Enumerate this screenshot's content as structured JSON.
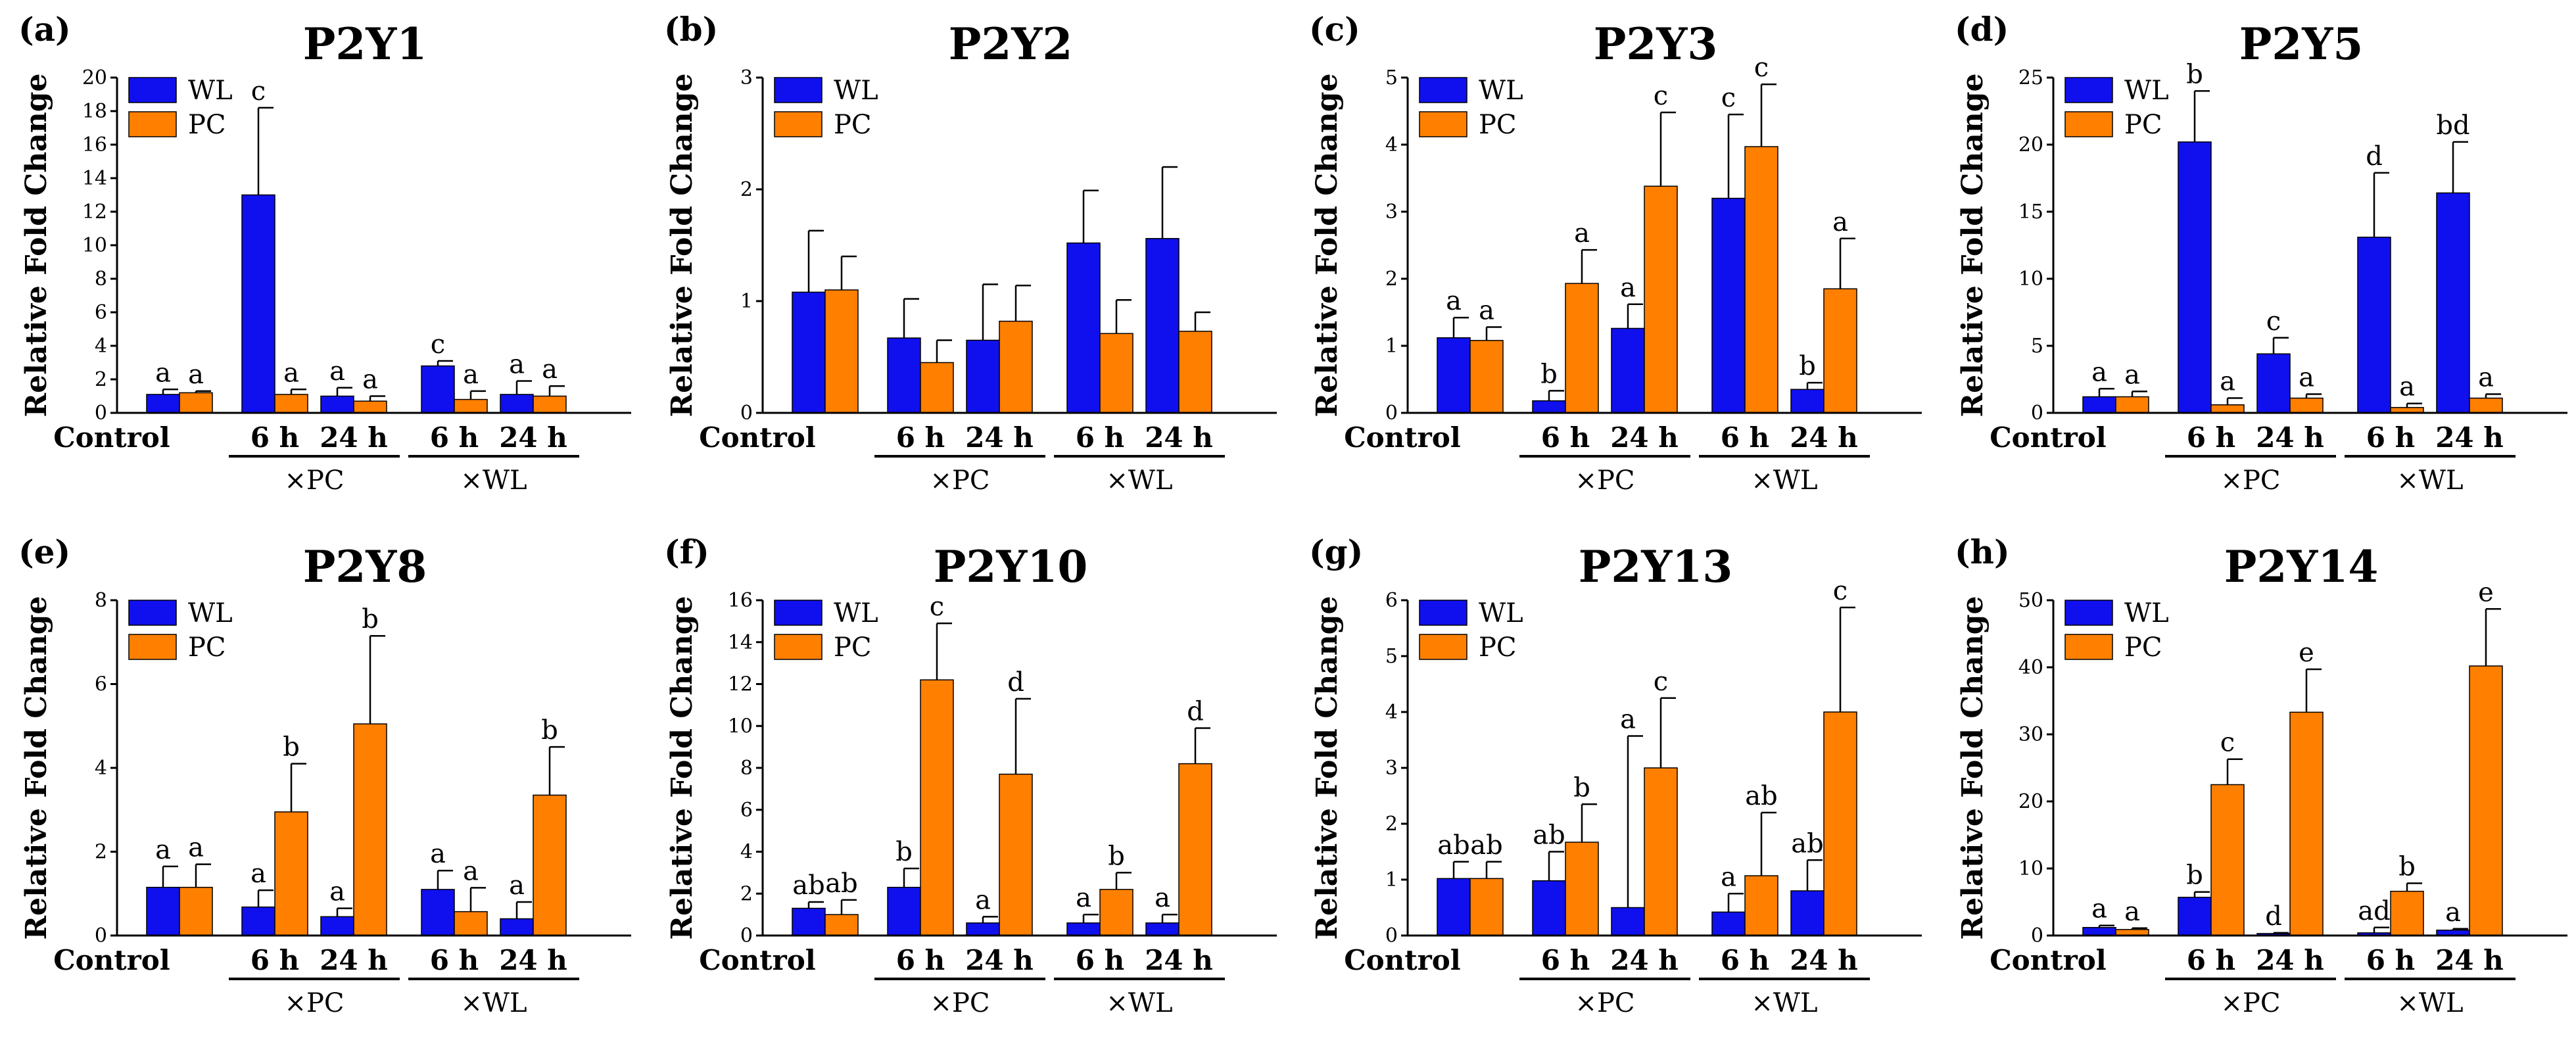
{
  "colors": {
    "WL": "#1010ee",
    "PC": "#ff7f00",
    "axis": "#000000"
  },
  "legend": {
    "wl_label": "WL",
    "pc_label": "PC"
  },
  "x_labels": {
    "control": "Control",
    "t6": "6 h",
    "t24": "24 h",
    "group_pc": "×PC",
    "group_wl": "×WL"
  },
  "ylabel": "Relative Fold Change",
  "chart_data": [
    {
      "type": "bar",
      "panel": "(a)",
      "title": "P2Y1",
      "ylabel": "Relative Fold Change",
      "ylim": [
        0,
        20
      ],
      "yticks": [
        0,
        2,
        4,
        6,
        8,
        10,
        12,
        14,
        16,
        18,
        20
      ],
      "categories": [
        "Control",
        "6 h ×PC",
        "24 h ×PC",
        "6 h ×WL",
        "24 h ×WL"
      ],
      "series": [
        {
          "name": "WL",
          "values": [
            1.1,
            13.0,
            1.0,
            2.8,
            1.1
          ],
          "errors": [
            0.3,
            5.2,
            0.5,
            0.3,
            0.8
          ],
          "labels": [
            "a",
            "c",
            "a",
            "c",
            "a"
          ]
        },
        {
          "name": "PC",
          "values": [
            1.2,
            1.1,
            0.7,
            0.8,
            1.0
          ],
          "errors": [
            0.1,
            0.3,
            0.3,
            0.5,
            0.6
          ],
          "labels": [
            "a",
            "a",
            "a",
            "a",
            "a"
          ]
        }
      ]
    },
    {
      "type": "bar",
      "panel": "(b)",
      "title": "P2Y2",
      "ylabel": "Relative Fold Change",
      "ylim": [
        0,
        3
      ],
      "yticks": [
        0,
        1,
        2,
        3
      ],
      "categories": [
        "Control",
        "6 h ×PC",
        "24 h ×PC",
        "6 h ×WL",
        "24 h ×WL"
      ],
      "series": [
        {
          "name": "WL",
          "values": [
            1.08,
            0.67,
            0.65,
            1.52,
            1.56
          ],
          "errors": [
            0.55,
            0.35,
            0.5,
            0.47,
            0.64
          ],
          "labels": [
            "",
            "",
            "",
            "",
            ""
          ]
        },
        {
          "name": "PC",
          "values": [
            1.1,
            0.45,
            0.82,
            0.71,
            0.73
          ],
          "errors": [
            0.3,
            0.2,
            0.32,
            0.3,
            0.17
          ],
          "labels": [
            "",
            "",
            "",
            "",
            ""
          ]
        }
      ]
    },
    {
      "type": "bar",
      "panel": "(c)",
      "title": "P2Y3",
      "ylabel": "Relative Fold Change",
      "ylim": [
        0,
        5
      ],
      "yticks": [
        0,
        1,
        2,
        3,
        4,
        5
      ],
      "categories": [
        "Control",
        "6 h ×PC",
        "24 h ×PC",
        "6 h ×WL",
        "24 h ×WL"
      ],
      "series": [
        {
          "name": "WL",
          "values": [
            1.12,
            0.18,
            1.26,
            3.2,
            0.35
          ],
          "errors": [
            0.3,
            0.15,
            0.36,
            1.25,
            0.1
          ],
          "labels": [
            "a",
            "b",
            "a",
            "c",
            "b"
          ]
        },
        {
          "name": "PC",
          "values": [
            1.08,
            1.93,
            3.38,
            3.97,
            1.85
          ],
          "errors": [
            0.2,
            0.5,
            1.1,
            0.93,
            0.75
          ],
          "labels": [
            "a",
            "a",
            "c",
            "c",
            "a"
          ]
        }
      ]
    },
    {
      "type": "bar",
      "panel": "(d)",
      "title": "P2Y5",
      "ylabel": "Relative Fold Change",
      "ylim": [
        0,
        25
      ],
      "yticks": [
        0,
        5,
        10,
        15,
        20,
        25
      ],
      "categories": [
        "Control",
        "6 h ×PC",
        "24 h ×PC",
        "6 h ×WL",
        "24 h ×WL"
      ],
      "series": [
        {
          "name": "WL",
          "values": [
            1.2,
            20.2,
            4.4,
            13.1,
            16.4
          ],
          "errors": [
            0.6,
            3.8,
            1.2,
            4.8,
            3.8
          ],
          "labels": [
            "a",
            "b",
            "c",
            "d",
            "bd"
          ]
        },
        {
          "name": "PC",
          "values": [
            1.2,
            0.6,
            1.1,
            0.4,
            1.1
          ],
          "errors": [
            0.4,
            0.5,
            0.3,
            0.3,
            0.3
          ],
          "labels": [
            "a",
            "a",
            "a",
            "a",
            "a"
          ]
        }
      ]
    },
    {
      "type": "bar",
      "panel": "(e)",
      "title": "P2Y8",
      "ylabel": "Relative Fold Change",
      "ylim": [
        0,
        8
      ],
      "yticks": [
        0,
        2,
        4,
        6,
        8
      ],
      "categories": [
        "Control",
        "6 h ×PC",
        "24 h ×PC",
        "6 h ×WL",
        "24 h ×WL"
      ],
      "series": [
        {
          "name": "WL",
          "values": [
            1.15,
            0.68,
            0.45,
            1.1,
            0.4
          ],
          "errors": [
            0.5,
            0.4,
            0.2,
            0.45,
            0.4
          ],
          "labels": [
            "a",
            "a",
            "a",
            "a",
            "a"
          ]
        },
        {
          "name": "PC",
          "values": [
            1.15,
            2.95,
            5.05,
            0.57,
            3.35
          ],
          "errors": [
            0.55,
            1.15,
            2.1,
            0.57,
            1.15
          ],
          "labels": [
            "a",
            "b",
            "b",
            "a",
            "b"
          ]
        }
      ]
    },
    {
      "type": "bar",
      "panel": "(f)",
      "title": "P2Y10",
      "ylabel": "Relative Fold Change",
      "ylim": [
        0,
        16
      ],
      "yticks": [
        0,
        2,
        4,
        6,
        8,
        10,
        12,
        14,
        16
      ],
      "categories": [
        "Control",
        "6 h ×PC",
        "24 h ×PC",
        "6 h ×WL",
        "24 h ×WL"
      ],
      "series": [
        {
          "name": "WL",
          "values": [
            1.3,
            2.3,
            0.6,
            0.6,
            0.6
          ],
          "errors": [
            0.3,
            0.9,
            0.3,
            0.4,
            0.4
          ],
          "labels": [
            "ab",
            "b",
            "a",
            "a",
            "a"
          ]
        },
        {
          "name": "PC",
          "values": [
            1.0,
            12.2,
            7.7,
            2.2,
            8.2
          ],
          "errors": [
            0.7,
            2.7,
            3.6,
            0.8,
            1.7
          ],
          "labels": [
            "ab",
            "c",
            "d",
            "b",
            "d"
          ]
        }
      ]
    },
    {
      "type": "bar",
      "panel": "(g)",
      "title": "P2Y13",
      "ylabel": "Relative Fold Change",
      "ylim": [
        0,
        6
      ],
      "yticks": [
        0,
        1,
        2,
        3,
        4,
        5,
        6
      ],
      "categories": [
        "Control",
        "6 h ×PC",
        "24 h ×PC",
        "6 h ×WL",
        "24 h ×WL"
      ],
      "series": [
        {
          "name": "WL",
          "values": [
            1.02,
            0.98,
            0.5,
            0.42,
            0.8
          ],
          "errors": [
            0.3,
            0.52,
            3.07,
            0.33,
            0.55
          ],
          "labels": [
            "ab",
            "ab",
            "a",
            "a",
            "ab"
          ]
        },
        {
          "name": "PC",
          "values": [
            1.02,
            1.67,
            3.0,
            1.07,
            4.0
          ],
          "errors": [
            0.3,
            0.68,
            1.25,
            1.13,
            1.87
          ],
          "labels": [
            "ab",
            "b",
            "c",
            "ab",
            "c"
          ]
        }
      ]
    },
    {
      "type": "bar",
      "panel": "(h)",
      "title": "P2Y14",
      "ylabel": "Relative Fold Change",
      "ylim": [
        0,
        50
      ],
      "yticks": [
        0,
        10,
        20,
        30,
        40,
        50
      ],
      "categories": [
        "Control",
        "6 h ×PC",
        "24 h ×PC",
        "6 h ×WL",
        "24 h ×WL"
      ],
      "series": [
        {
          "name": "WL",
          "values": [
            1.2,
            5.7,
            0.3,
            0.4,
            0.8
          ],
          "errors": [
            0.3,
            0.8,
            0.1,
            0.8,
            0.2
          ],
          "labels": [
            "a",
            "b",
            "d",
            "ad",
            "a"
          ]
        },
        {
          "name": "PC",
          "values": [
            0.9,
            22.5,
            33.3,
            6.6,
            40.2
          ],
          "errors": [
            0.2,
            3.8,
            6.4,
            1.2,
            8.5
          ],
          "labels": [
            "a",
            "c",
            "e",
            "b",
            "e"
          ]
        }
      ]
    }
  ]
}
